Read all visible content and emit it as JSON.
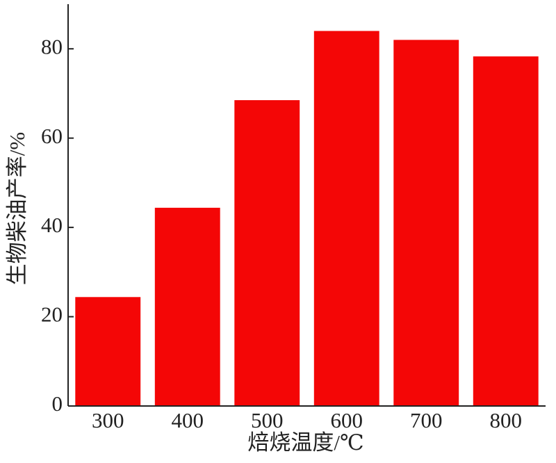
{
  "chart_data": {
    "type": "bar",
    "x_label": "焙烧温度/℃",
    "y_label": "生物柴油产率/%",
    "categories": [
      "300",
      "400",
      "500",
      "600",
      "700",
      "800"
    ],
    "values": [
      24.4,
      44.4,
      68.5,
      84.0,
      82.0,
      78.3
    ],
    "color": "#f40606",
    "ylim": [
      0,
      90
    ],
    "yticks": [
      0,
      20,
      40,
      60,
      80
    ],
    "grid": false
  }
}
